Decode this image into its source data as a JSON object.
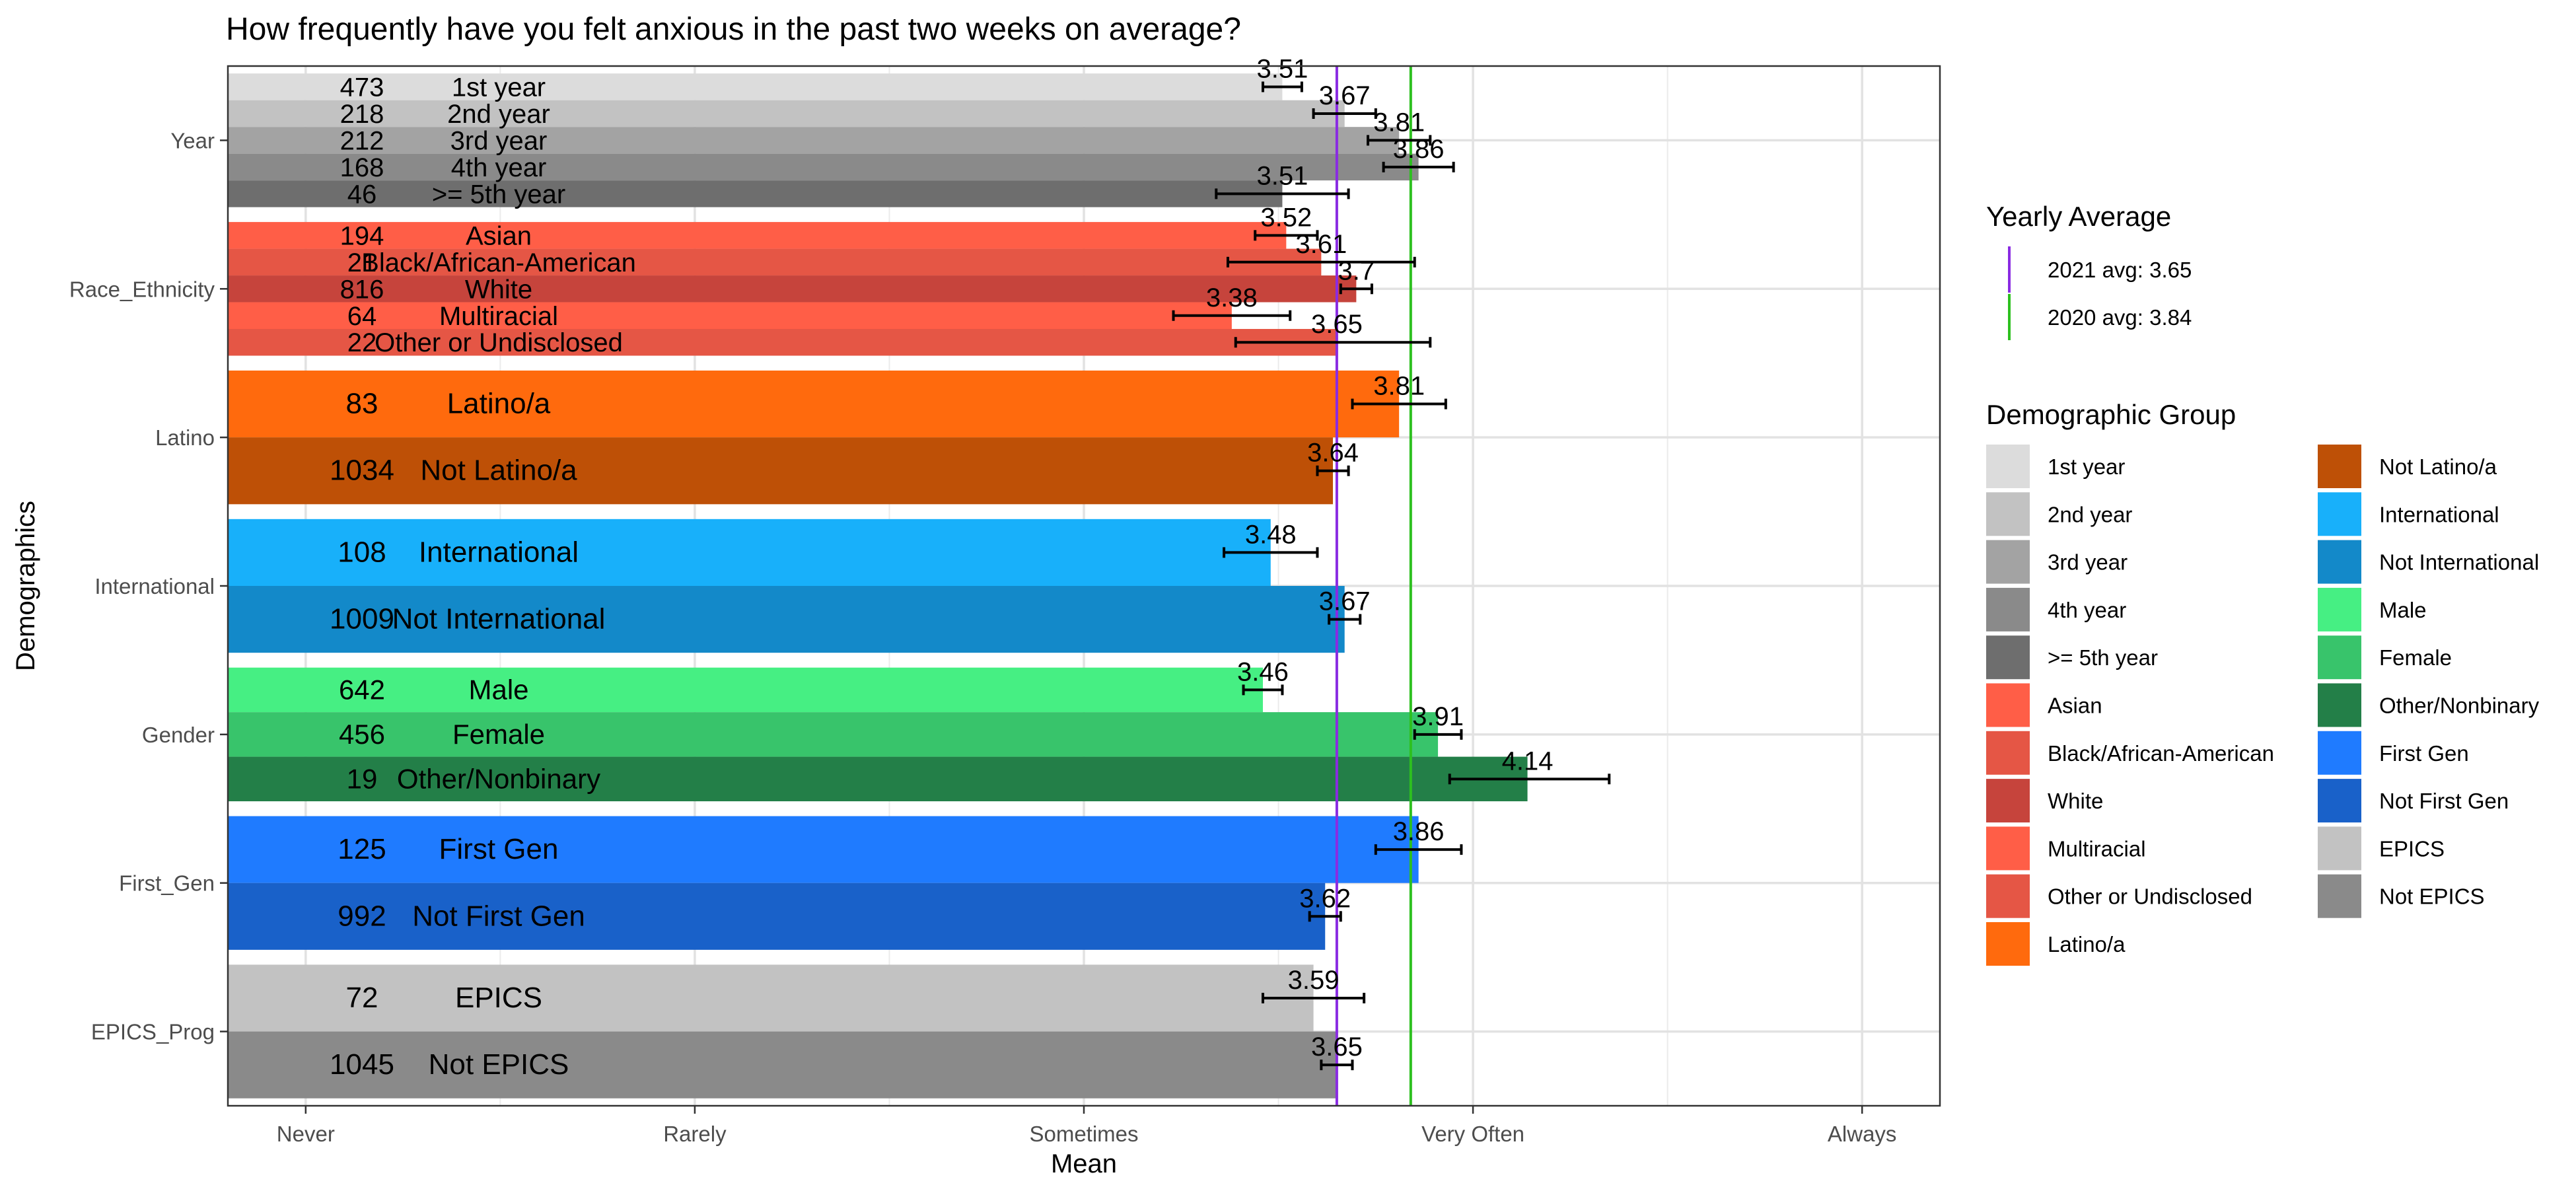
{
  "chart_data": {
    "type": "bar",
    "orientation": "horizontal",
    "title": "How frequently have you felt anxious in the past two weeks on average?",
    "xlabel": "Mean",
    "ylabel": "Demographics",
    "xlim": [
      0.8,
      5.2
    ],
    "x_ticks": [
      {
        "value": 1,
        "label": "Never"
      },
      {
        "value": 2,
        "label": "Rarely"
      },
      {
        "value": 3,
        "label": "Sometimes"
      },
      {
        "value": 4,
        "label": "Very Often"
      },
      {
        "value": 5,
        "label": "Always"
      }
    ],
    "grid": true,
    "categories": [
      "Year",
      "Race_Ethnicity",
      "Latino",
      "International",
      "Gender",
      "First_Gen",
      "EPICS_Prog"
    ],
    "groups": [
      {
        "category": "Year",
        "bars": [
          {
            "label": "1st year",
            "n": "473",
            "mean": 3.51,
            "ci": [
              3.46,
              3.56
            ],
            "color": "#DCDCDC"
          },
          {
            "label": "2nd year",
            "n": "218",
            "mean": 3.67,
            "ci": [
              3.59,
              3.75
            ],
            "color": "#C2C2C2"
          },
          {
            "label": "3rd year",
            "n": "212",
            "mean": 3.81,
            "ci": [
              3.73,
              3.89
            ],
            "color": "#A3A3A3"
          },
          {
            "label": "4th year",
            "n": "168",
            "mean": 3.86,
            "ci": [
              3.77,
              3.95
            ],
            "color": "#8A8A8A"
          },
          {
            "label": ">= 5th year",
            "n": "46",
            "mean": 3.51,
            "ci": [
              3.34,
              3.68
            ],
            "color": "#6E6E6E"
          }
        ]
      },
      {
        "category": "Race_Ethnicity",
        "bars": [
          {
            "label": "Asian",
            "n": "194",
            "mean": 3.52,
            "ci": [
              3.44,
              3.6
            ],
            "color": "#FF5E47"
          },
          {
            "label": "Black/African-American",
            "n": "21",
            "mean": 3.61,
            "ci": [
              3.37,
              3.85
            ],
            "color": "#E55645"
          },
          {
            "label": "White",
            "n": "816",
            "mean": 3.7,
            "ci": [
              3.66,
              3.74
            ],
            "color": "#C6443C"
          },
          {
            "label": "Multiracial",
            "n": "64",
            "mean": 3.38,
            "ci": [
              3.23,
              3.53
            ],
            "color": "#FF5E47"
          },
          {
            "label": "Other or Undisclosed",
            "n": "22",
            "mean": 3.65,
            "ci": [
              3.39,
              3.89
            ],
            "color": "#E55645"
          }
        ]
      },
      {
        "category": "Latino",
        "bars": [
          {
            "label": "Latino/a",
            "n": "83",
            "mean": 3.81,
            "ci": [
              3.69,
              3.93
            ],
            "color": "#FF6A0D"
          },
          {
            "label": "Not Latino/a",
            "n": "1034",
            "mean": 3.64,
            "ci": [
              3.6,
              3.68
            ],
            "color": "#BE5006"
          }
        ]
      },
      {
        "category": "International",
        "bars": [
          {
            "label": "International",
            "n": "108",
            "mean": 3.48,
            "ci": [
              3.36,
              3.6
            ],
            "color": "#18B0FA"
          },
          {
            "label": "Not International",
            "n": "1009",
            "mean": 3.67,
            "ci": [
              3.63,
              3.71
            ],
            "color": "#1389C9"
          }
        ]
      },
      {
        "category": "Gender",
        "bars": [
          {
            "label": "Male",
            "n": "642",
            "mean": 3.46,
            "ci": [
              3.41,
              3.51
            ],
            "color": "#46EF83"
          },
          {
            "label": "Female",
            "n": "456",
            "mean": 3.91,
            "ci": [
              3.85,
              3.97
            ],
            "color": "#38C46B"
          },
          {
            "label": "Other/Nonbinary",
            "n": "19",
            "mean": 4.14,
            "ci": [
              3.94,
              4.35
            ],
            "color": "#237F48"
          }
        ]
      },
      {
        "category": "First_Gen",
        "bars": [
          {
            "label": "First Gen",
            "n": "125",
            "mean": 3.86,
            "ci": [
              3.75,
              3.97
            ],
            "color": "#1F7BFF"
          },
          {
            "label": "Not First Gen",
            "n": "992",
            "mean": 3.62,
            "ci": [
              3.58,
              3.66
            ],
            "color": "#1961C9"
          }
        ]
      },
      {
        "category": "EPICS_Prog",
        "bars": [
          {
            "label": "EPICS",
            "n": "72",
            "mean": 3.59,
            "ci": [
              3.46,
              3.72
            ],
            "color": "#C2C2C2"
          },
          {
            "label": "Not EPICS",
            "n": "1045",
            "mean": 3.65,
            "ci": [
              3.61,
              3.69
            ],
            "color": "#8A8A8A"
          }
        ]
      }
    ],
    "reference_lines": [
      {
        "label": "2021 avg: 3.65",
        "value": 3.65,
        "color": "#8A2BE2"
      },
      {
        "label": "2020 avg: 3.84",
        "value": 3.84,
        "color": "#2DC01F"
      }
    ],
    "legend_position": "right",
    "legends": [
      {
        "title": "Yearly Average",
        "items_from": "reference_lines"
      },
      {
        "title": "Demographic Group",
        "columns": 2,
        "items": [
          {
            "label": "1st year",
            "color": "#DCDCDC"
          },
          {
            "label": "2nd year",
            "color": "#C2C2C2"
          },
          {
            "label": "3rd year",
            "color": "#A3A3A3"
          },
          {
            "label": "4th year",
            "color": "#8A8A8A"
          },
          {
            "label": ">= 5th year",
            "color": "#6E6E6E"
          },
          {
            "label": "Asian",
            "color": "#FF5E47"
          },
          {
            "label": "Black/African-American",
            "color": "#E55645"
          },
          {
            "label": "White",
            "color": "#C6443C"
          },
          {
            "label": "Multiracial",
            "color": "#FF5E47"
          },
          {
            "label": "Other or Undisclosed",
            "color": "#E55645"
          },
          {
            "label": "Latino/a",
            "color": "#FF6A0D"
          },
          {
            "label": "Not Latino/a",
            "color": "#BE5006"
          },
          {
            "label": "International",
            "color": "#18B0FA"
          },
          {
            "label": "Not International",
            "color": "#1389C9"
          },
          {
            "label": "Male",
            "color": "#46EF83"
          },
          {
            "label": "Female",
            "color": "#38C46B"
          },
          {
            "label": "Other/Nonbinary",
            "color": "#237F48"
          },
          {
            "label": "First Gen",
            "color": "#1F7BFF"
          },
          {
            "label": "Not First Gen",
            "color": "#1961C9"
          },
          {
            "label": "EPICS",
            "color": "#C2C2C2"
          },
          {
            "label": "Not EPICS",
            "color": "#8A8A8A"
          }
        ]
      }
    ]
  }
}
